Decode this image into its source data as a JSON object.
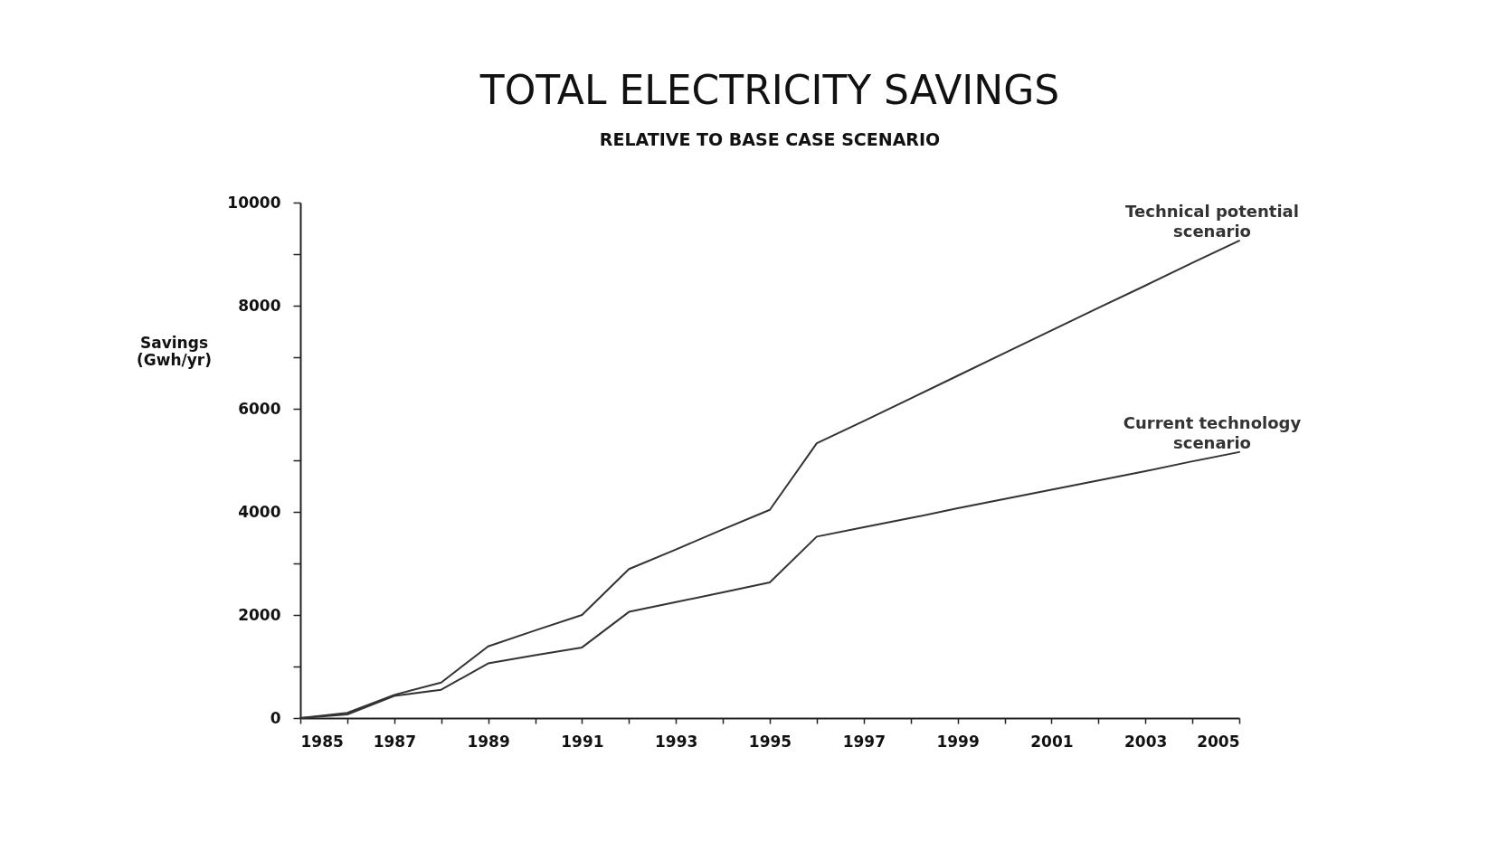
{
  "chart_data": {
    "type": "line",
    "title": "TOTAL ELECTRICITY SAVINGS",
    "subtitle": "RELATIVE TO BASE CASE SCENARIO",
    "ylabel": "Savings (Gwh/yr)",
    "x": [
      1985,
      1986,
      1987,
      1988,
      1989,
      1990,
      1991,
      1992,
      1993,
      1994,
      1995,
      1996,
      1997,
      1998,
      1999,
      2000,
      2001,
      2002,
      2003,
      2004,
      2005
    ],
    "series": [
      {
        "name": "Technical potential scenario",
        "color": "#333333",
        "values": [
          0,
          100,
          450,
          690,
          1390,
          1700,
          2000,
          2890,
          3270,
          3660,
          4040,
          5330,
          5760,
          6200,
          6640,
          7080,
          7520,
          7960,
          8390,
          8830,
          9260
        ]
      },
      {
        "name": "Current technology scenario",
        "color": "#333333",
        "values": [
          0,
          70,
          430,
          550,
          1060,
          1220,
          1370,
          2060,
          2250,
          2440,
          2630,
          3520,
          3700,
          3880,
          4070,
          4250,
          4430,
          4610,
          4790,
          4980,
          5160
        ]
      }
    ],
    "xlim": [
      1985,
      2005
    ],
    "xticks": [
      1985,
      {
        "value": 1986,
        "label": null
      },
      1987,
      {
        "value": 1988,
        "label": null
      },
      1989,
      {
        "value": 1990,
        "label": null
      },
      1991,
      {
        "value": 1992,
        "label": null
      },
      1993,
      {
        "value": 1994,
        "label": null
      },
      1995,
      {
        "value": 1996,
        "label": null
      },
      1997,
      {
        "value": 1998,
        "label": null
      },
      1999,
      {
        "value": 2000,
        "label": null
      },
      2001,
      {
        "value": 2002,
        "label": null
      },
      2003,
      {
        "value": 2004,
        "label": null
      },
      2005
    ],
    "ylim": [
      0,
      10000
    ],
    "yticks": [
      0,
      {
        "value": 1000,
        "label": null
      },
      2000,
      {
        "value": 3000,
        "label": null
      },
      4000,
      {
        "value": 5000,
        "label": null
      },
      6000,
      {
        "value": 7000,
        "label": null
      },
      8000,
      {
        "value": 9000,
        "label": null
      },
      10000
    ],
    "grid": false,
    "legend": false,
    "line_style": "solid",
    "marker": "none"
  }
}
